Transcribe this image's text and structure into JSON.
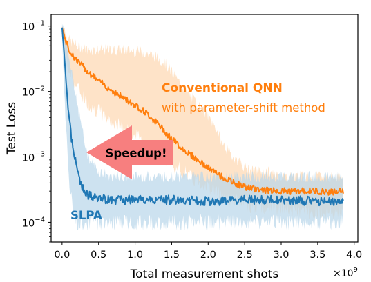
{
  "chart_data": {
    "type": "line",
    "xlabel": "Total measurement shots",
    "ylabel": "Test Loss",
    "x_multiplier_label": "×10",
    "x_multiplier_exp": "9",
    "xlim": [
      -0.15,
      4.05
    ],
    "ylim": [
      5e-05,
      0.15
    ],
    "yscale": "log",
    "grid": false,
    "x_ticks": [
      0.0,
      0.5,
      1.0,
      1.5,
      2.0,
      2.5,
      3.0,
      3.5,
      4.0
    ],
    "x_tick_labels": [
      "0.0",
      "0.5",
      "1.0",
      "1.5",
      "2.0",
      "2.5",
      "3.0",
      "3.5",
      "4.0"
    ],
    "y_ticks": [
      0.1,
      0.01,
      0.001,
      0.0001
    ],
    "y_tick_labels": [
      {
        "base": "10",
        "exp": "−1"
      },
      {
        "base": "10",
        "exp": "−2"
      },
      {
        "base": "10",
        "exp": "−3"
      },
      {
        "base": "10",
        "exp": "−4"
      }
    ],
    "series": [
      {
        "name": "Conventional QNN",
        "color": "#ff7f0e",
        "band_color": "#fdd9b5",
        "x": [
          0.0,
          0.02,
          0.05,
          0.1,
          0.2,
          0.3,
          0.4,
          0.5,
          0.6,
          0.7,
          0.8,
          0.9,
          1.0,
          1.1,
          1.2,
          1.3,
          1.4,
          1.5,
          1.6,
          1.7,
          1.8,
          1.9,
          2.0,
          2.1,
          2.2,
          2.3,
          2.4,
          2.5,
          2.6,
          2.8,
          3.0,
          3.2,
          3.5,
          3.7,
          3.85
        ],
        "y": [
          0.095,
          0.08,
          0.058,
          0.042,
          0.03,
          0.023,
          0.018,
          0.0145,
          0.012,
          0.01,
          0.0085,
          0.0072,
          0.0062,
          0.0052,
          0.0042,
          0.0033,
          0.0025,
          0.0019,
          0.0015,
          0.0012,
          0.001,
          0.00082,
          0.00068,
          0.00057,
          0.00049,
          0.00043,
          0.00038,
          0.00035,
          0.00033,
          0.00031,
          0.0003,
          0.0003,
          0.0003,
          0.00029,
          0.0003
        ],
        "upper": [
          0.1,
          0.1,
          0.08,
          0.06,
          0.05,
          0.045,
          0.043,
          0.043,
          0.043,
          0.043,
          0.043,
          0.043,
          0.042,
          0.04,
          0.037,
          0.033,
          0.028,
          0.02,
          0.014,
          0.01,
          0.0075,
          0.0055,
          0.0042,
          0.0028,
          0.0016,
          0.0011,
          0.0009,
          0.0007,
          0.0006,
          0.0006,
          0.0005,
          0.0005,
          0.0005,
          0.0005,
          0.0005
        ],
        "lower": [
          0.09,
          0.05,
          0.03,
          0.02,
          0.012,
          0.008,
          0.006,
          0.005,
          0.004,
          0.0034,
          0.0029,
          0.0025,
          0.0021,
          0.0018,
          0.0015,
          0.0012,
          0.001,
          0.0008,
          0.00065,
          0.00055,
          0.00045,
          0.0004,
          0.00035,
          0.0003,
          0.00026,
          0.00023,
          0.00021,
          0.0002,
          0.00018,
          0.00017,
          0.00016,
          0.00015,
          0.00015,
          0.00014,
          0.00015
        ]
      },
      {
        "name": "SLPA",
        "color": "#1f77b4",
        "band_color": "#b8d6ea",
        "x": [
          0.0,
          0.02,
          0.04,
          0.06,
          0.08,
          0.1,
          0.12,
          0.15,
          0.18,
          0.2,
          0.22,
          0.25,
          0.28,
          0.3,
          0.35,
          0.4,
          0.5,
          0.7,
          1.0,
          1.5,
          2.0,
          2.5,
          3.0,
          3.5,
          3.85
        ],
        "y": [
          0.095,
          0.05,
          0.025,
          0.012,
          0.0065,
          0.0038,
          0.0022,
          0.0013,
          0.0009,
          0.0007,
          0.00055,
          0.00042,
          0.00035,
          0.0003,
          0.00026,
          0.00025,
          0.00023,
          0.00022,
          0.00022,
          0.00022,
          0.00021,
          0.00022,
          0.00022,
          0.00021,
          0.00021
        ],
        "upper": [
          0.1,
          0.09,
          0.07,
          0.05,
          0.04,
          0.03,
          0.025,
          0.016,
          0.01,
          0.0075,
          0.005,
          0.0035,
          0.0025,
          0.0018,
          0.0011,
          0.0008,
          0.0006,
          0.0005,
          0.0005,
          0.0005,
          0.0005,
          0.0005,
          0.0005,
          0.0005,
          0.0005
        ],
        "lower": [
          0.09,
          0.02,
          0.006,
          0.002,
          0.0008,
          0.0004,
          0.00025,
          0.00015,
          0.00012,
          0.0001,
          0.0001,
          0.0001,
          0.0001,
          0.0001,
          0.0001,
          0.0001,
          0.0001,
          0.0001,
          0.0001,
          0.0001,
          0.0001,
          0.0001,
          0.0001,
          0.0001,
          0.0001
        ]
      }
    ],
    "annotations": {
      "qnn_title": "Conventional QNN",
      "qnn_subtitle": "with parameter-shift method",
      "slpa_label": "SLPA",
      "arrow_label": "Speedup!",
      "arrow_color": "#f77f7f"
    }
  }
}
